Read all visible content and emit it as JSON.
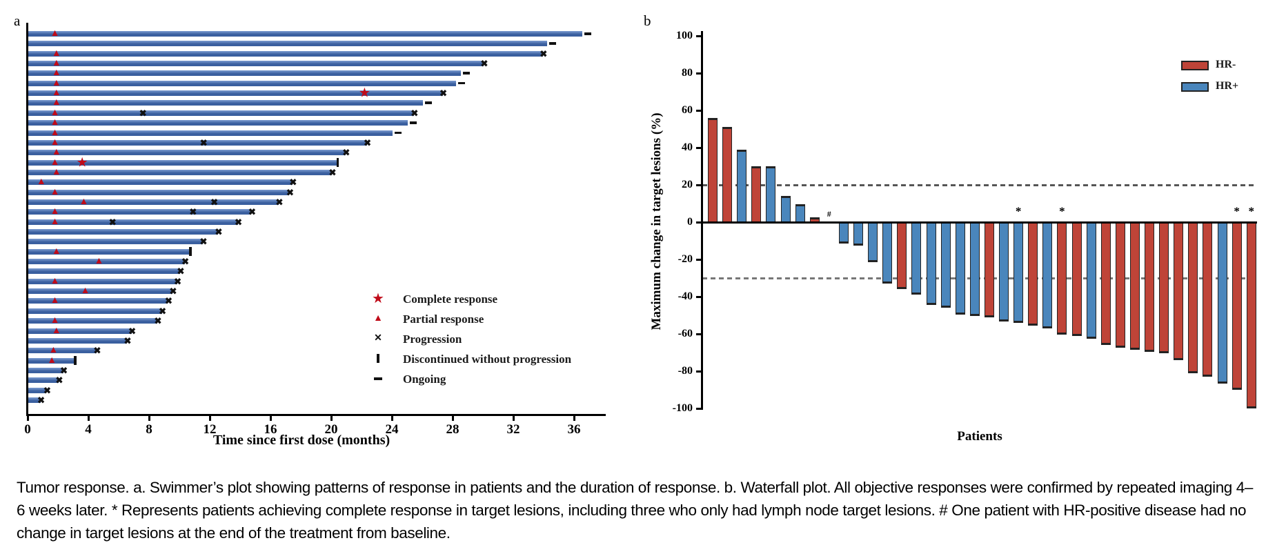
{
  "caption": "Tumor response. a. Swimmer’s plot showing patterns of response in patients and the duration of response. b. Waterfall plot. All objective responses were confirmed by repeated imaging 4–6 weeks later. * Represents patients achieving complete response in target lesions, including three who only had lymph node target lesions. # One patient with HR-positive disease had no change in target lesions at the end of the treatment from baseline.",
  "chart_data": [
    {
      "type": "swimmer",
      "panel_label": "a",
      "xlabel": "Time since first dose (months)",
      "xlim": [
        0,
        38
      ],
      "x_ticks": [
        0,
        4,
        8,
        12,
        16,
        20,
        24,
        28,
        32,
        36
      ],
      "bar_color": "#3a5f9f",
      "bar_highlight": "#7b9bd0",
      "marker_red": "#c00b19",
      "marker_black": "#111111",
      "legend": [
        {
          "symbol": "star",
          "label": "Complete response"
        },
        {
          "symbol": "triangle",
          "label": "Partial response"
        },
        {
          "symbol": "x",
          "label": "Progression"
        },
        {
          "symbol": "vbar",
          "label": "Discontinued without progression"
        },
        {
          "symbol": "dash",
          "label": "Ongoing"
        }
      ],
      "patients": [
        {
          "duration": 36.5,
          "end": "ongoing",
          "partial_response_at": [
            1.8
          ],
          "complete_response_at": [],
          "progression_at": []
        },
        {
          "duration": 34.2,
          "end": "ongoing",
          "partial_response_at": [],
          "complete_response_at": [],
          "progression_at": []
        },
        {
          "duration": 33.9,
          "end": "progression",
          "partial_response_at": [
            1.9
          ],
          "complete_response_at": [],
          "progression_at": []
        },
        {
          "duration": 30.0,
          "end": "progression",
          "partial_response_at": [
            1.9
          ],
          "complete_response_at": [],
          "progression_at": []
        },
        {
          "duration": 28.5,
          "end": "ongoing",
          "partial_response_at": [
            1.9
          ],
          "complete_response_at": [],
          "progression_at": []
        },
        {
          "duration": 28.2,
          "end": "ongoing",
          "partial_response_at": [
            1.9
          ],
          "complete_response_at": [],
          "progression_at": []
        },
        {
          "duration": 27.3,
          "end": "progression",
          "partial_response_at": [
            1.9
          ],
          "complete_response_at": [
            22.2
          ],
          "progression_at": []
        },
        {
          "duration": 26.0,
          "end": "ongoing",
          "partial_response_at": [
            1.9
          ],
          "complete_response_at": [],
          "progression_at": []
        },
        {
          "duration": 25.4,
          "end": "progression",
          "partial_response_at": [
            1.8
          ],
          "complete_response_at": [],
          "progression_at": [
            7.6
          ]
        },
        {
          "duration": 25.0,
          "end": "ongoing",
          "partial_response_at": [
            1.8
          ],
          "complete_response_at": [],
          "progression_at": []
        },
        {
          "duration": 24.0,
          "end": "ongoing",
          "partial_response_at": [
            1.8
          ],
          "complete_response_at": [],
          "progression_at": []
        },
        {
          "duration": 22.3,
          "end": "progression",
          "partial_response_at": [
            1.8
          ],
          "complete_response_at": [],
          "progression_at": [
            11.6
          ]
        },
        {
          "duration": 20.9,
          "end": "progression",
          "partial_response_at": [
            1.9
          ],
          "complete_response_at": [],
          "progression_at": []
        },
        {
          "duration": 20.3,
          "end": "discontinued",
          "partial_response_at": [
            1.8
          ],
          "complete_response_at": [
            3.6
          ],
          "progression_at": []
        },
        {
          "duration": 20.0,
          "end": "progression",
          "partial_response_at": [
            1.9
          ],
          "complete_response_at": [],
          "progression_at": []
        },
        {
          "duration": 17.4,
          "end": "progression",
          "partial_response_at": [
            0.9
          ],
          "complete_response_at": [],
          "progression_at": []
        },
        {
          "duration": 17.2,
          "end": "progression",
          "partial_response_at": [
            1.8
          ],
          "complete_response_at": [],
          "progression_at": []
        },
        {
          "duration": 16.5,
          "end": "progression",
          "partial_response_at": [
            3.7
          ],
          "complete_response_at": [],
          "progression_at": [
            12.3
          ]
        },
        {
          "duration": 14.7,
          "end": "progression",
          "partial_response_at": [
            1.8
          ],
          "complete_response_at": [],
          "progression_at": [
            10.9
          ]
        },
        {
          "duration": 13.8,
          "end": "progression",
          "partial_response_at": [
            1.8
          ],
          "complete_response_at": [],
          "progression_at": [
            5.6
          ]
        },
        {
          "duration": 12.5,
          "end": "progression",
          "partial_response_at": [],
          "complete_response_at": [],
          "progression_at": []
        },
        {
          "duration": 11.5,
          "end": "progression",
          "partial_response_at": [],
          "complete_response_at": [],
          "progression_at": []
        },
        {
          "duration": 10.6,
          "end": "discontinued",
          "partial_response_at": [
            1.9
          ],
          "complete_response_at": [],
          "progression_at": []
        },
        {
          "duration": 10.3,
          "end": "progression",
          "partial_response_at": [
            4.7
          ],
          "complete_response_at": [],
          "progression_at": []
        },
        {
          "duration": 10.0,
          "end": "progression",
          "partial_response_at": [],
          "complete_response_at": [],
          "progression_at": []
        },
        {
          "duration": 9.8,
          "end": "progression",
          "partial_response_at": [
            1.8
          ],
          "complete_response_at": [],
          "progression_at": []
        },
        {
          "duration": 9.5,
          "end": "progression",
          "partial_response_at": [
            3.8
          ],
          "complete_response_at": [],
          "progression_at": []
        },
        {
          "duration": 9.2,
          "end": "progression",
          "partial_response_at": [
            1.8
          ],
          "complete_response_at": [],
          "progression_at": []
        },
        {
          "duration": 8.8,
          "end": "progression",
          "partial_response_at": [],
          "complete_response_at": [],
          "progression_at": []
        },
        {
          "duration": 8.5,
          "end": "progression",
          "partial_response_at": [
            1.8
          ],
          "complete_response_at": [],
          "progression_at": []
        },
        {
          "duration": 6.8,
          "end": "progression",
          "partial_response_at": [
            1.9
          ],
          "complete_response_at": [],
          "progression_at": []
        },
        {
          "duration": 6.5,
          "end": "progression",
          "partial_response_at": [],
          "complete_response_at": [],
          "progression_at": []
        },
        {
          "duration": 4.5,
          "end": "progression",
          "partial_response_at": [
            1.7
          ],
          "complete_response_at": [],
          "progression_at": []
        },
        {
          "duration": 3.0,
          "end": "discontinued",
          "partial_response_at": [
            1.6
          ],
          "complete_response_at": [],
          "progression_at": []
        },
        {
          "duration": 2.3,
          "end": "progression",
          "partial_response_at": [],
          "complete_response_at": [],
          "progression_at": []
        },
        {
          "duration": 2.0,
          "end": "progression",
          "partial_response_at": [],
          "complete_response_at": [],
          "progression_at": []
        },
        {
          "duration": 1.2,
          "end": "progression",
          "partial_response_at": [],
          "complete_response_at": [],
          "progression_at": []
        },
        {
          "duration": 0.8,
          "end": "progression",
          "partial_response_at": [],
          "complete_response_at": [],
          "progression_at": []
        }
      ]
    },
    {
      "type": "waterfall",
      "panel_label": "b",
      "ylabel": "Maximum change in target lesions (%)",
      "xlabel": "Patients",
      "ylim": [
        -100,
        100
      ],
      "y_ticks": [
        100,
        80,
        60,
        40,
        20,
        0,
        -20,
        -40,
        -60,
        -80,
        -100
      ],
      "reference_lines": [
        {
          "value": 20,
          "color": "#555555"
        },
        {
          "value": -30,
          "color": "#777777"
        }
      ],
      "legend": [
        {
          "label": "HR-",
          "color": "#bf4438"
        },
        {
          "label": "HR+",
          "color": "#4a86bc"
        }
      ],
      "groups": {
        "HR-": "#bf4438",
        "HR+": "#4a86bc"
      },
      "bars": [
        {
          "value": 56,
          "group": "HR-",
          "annotation": ""
        },
        {
          "value": 51,
          "group": "HR-",
          "annotation": ""
        },
        {
          "value": 39,
          "group": "HR+",
          "annotation": ""
        },
        {
          "value": 30,
          "group": "HR-",
          "annotation": ""
        },
        {
          "value": 30,
          "group": "HR+",
          "annotation": ""
        },
        {
          "value": 14,
          "group": "HR+",
          "annotation": ""
        },
        {
          "value": 9.5,
          "group": "HR+",
          "annotation": ""
        },
        {
          "value": 2.5,
          "group": "HR-",
          "annotation": ""
        },
        {
          "value": 0,
          "group": "HR+",
          "annotation": "#"
        },
        {
          "value": -11.5,
          "group": "HR+",
          "annotation": ""
        },
        {
          "value": -12.5,
          "group": "HR+",
          "annotation": ""
        },
        {
          "value": -21.5,
          "group": "HR+",
          "annotation": ""
        },
        {
          "value": -33,
          "group": "HR+",
          "annotation": ""
        },
        {
          "value": -36,
          "group": "HR-",
          "annotation": ""
        },
        {
          "value": -39,
          "group": "HR+",
          "annotation": ""
        },
        {
          "value": -44.5,
          "group": "HR+",
          "annotation": ""
        },
        {
          "value": -46,
          "group": "HR+",
          "annotation": ""
        },
        {
          "value": -49.5,
          "group": "HR+",
          "annotation": ""
        },
        {
          "value": -50.5,
          "group": "HR+",
          "annotation": ""
        },
        {
          "value": -51,
          "group": "HR-",
          "annotation": ""
        },
        {
          "value": -53.5,
          "group": "HR+",
          "annotation": ""
        },
        {
          "value": -54,
          "group": "HR+",
          "annotation": "*"
        },
        {
          "value": -55.5,
          "group": "HR-",
          "annotation": ""
        },
        {
          "value": -57,
          "group": "HR+",
          "annotation": ""
        },
        {
          "value": -60.5,
          "group": "HR-",
          "annotation": "*"
        },
        {
          "value": -61,
          "group": "HR-",
          "annotation": ""
        },
        {
          "value": -62.5,
          "group": "HR+",
          "annotation": ""
        },
        {
          "value": -66,
          "group": "HR-",
          "annotation": ""
        },
        {
          "value": -67.5,
          "group": "HR-",
          "annotation": ""
        },
        {
          "value": -68.5,
          "group": "HR-",
          "annotation": ""
        },
        {
          "value": -69.5,
          "group": "HR-",
          "annotation": ""
        },
        {
          "value": -70.5,
          "group": "HR-",
          "annotation": ""
        },
        {
          "value": -74,
          "group": "HR-",
          "annotation": ""
        },
        {
          "value": -81,
          "group": "HR-",
          "annotation": ""
        },
        {
          "value": -83,
          "group": "HR-",
          "annotation": ""
        },
        {
          "value": -86.5,
          "group": "HR+",
          "annotation": ""
        },
        {
          "value": -90,
          "group": "HR-",
          "annotation": "*"
        },
        {
          "value": -100,
          "group": "HR-",
          "annotation": "*"
        }
      ]
    }
  ]
}
